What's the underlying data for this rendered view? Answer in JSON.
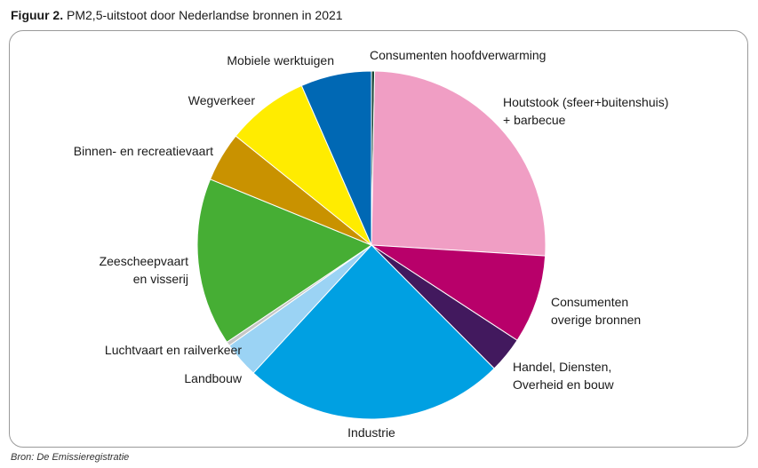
{
  "figure": {
    "number": "Figuur 2.",
    "title": "PM2,5-uitstoot door Nederlandse bronnen in 2021",
    "source": "Bron: De Emissieregistratie"
  },
  "chart_data": {
    "type": "pie",
    "title": "PM2,5-uitstoot door Nederlandse bronnen in 2021",
    "unit": "percent",
    "start": "12 o'clock",
    "direction": "clockwise",
    "slices": [
      {
        "label": [
          "Consumenten hoofdverwarming"
        ],
        "value": 0.3,
        "color": "#1c4a3a"
      },
      {
        "label": [
          "Houtstook (sfeer+buitenshuis)",
          "+ barbecue"
        ],
        "value": 26.2,
        "color": "#f09ec4"
      },
      {
        "label": [
          "Consumenten",
          "overige bronnen"
        ],
        "value": 8.4,
        "color": "#b8006a"
      },
      {
        "label": [
          "Handel, Diensten,",
          "Overheid en bouw"
        ],
        "value": 3.4,
        "color": "#42195e"
      },
      {
        "label": [
          "Industrie"
        ],
        "value": 24.8,
        "color": "#00a0e2"
      },
      {
        "label": [
          "Landbouw"
        ],
        "value": 3.4,
        "color": "#9bd3f4"
      },
      {
        "label": [
          "Luchtvaart en railverkeer"
        ],
        "value": 0.4,
        "color": "#c6c6c6"
      },
      {
        "label": [
          "Zeescheepvaart",
          "en visserij"
        ],
        "value": 15.9,
        "color": "#46ae34"
      },
      {
        "label": [
          "Binnen- en recreatievaart"
        ],
        "value": 4.7,
        "color": "#c99200"
      },
      {
        "label": [
          "Wegverkeer"
        ],
        "value": 7.8,
        "color": "#ffec00"
      },
      {
        "label": [
          "Mobiele werktuigen"
        ],
        "value": 6.7,
        "color": "#0068b4"
      }
    ]
  }
}
